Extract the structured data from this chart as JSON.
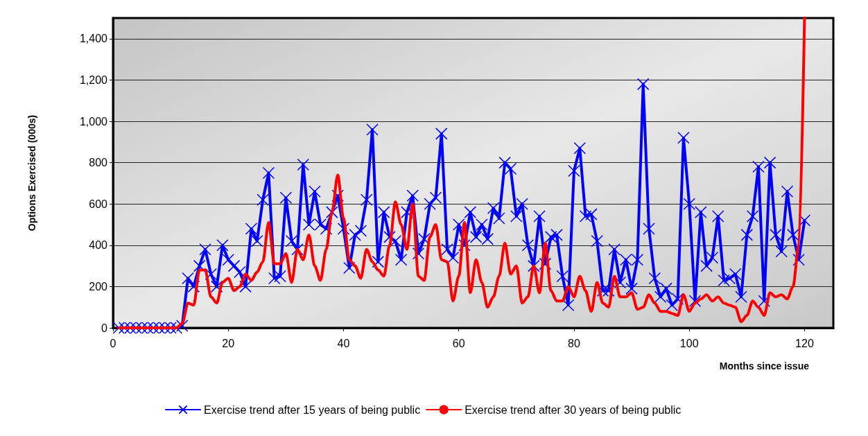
{
  "chart_data": {
    "type": "line",
    "xlabel": "Months since issue",
    "ylabel": "Options Exercised (000s)",
    "x": [
      1,
      2,
      3,
      4,
      5,
      6,
      7,
      8,
      9,
      10,
      11,
      12,
      13,
      14,
      15,
      16,
      17,
      18,
      19,
      20,
      21,
      22,
      23,
      24,
      25,
      26,
      27,
      28,
      29,
      30,
      31,
      32,
      33,
      34,
      35,
      36,
      37,
      38,
      39,
      40,
      41,
      42,
      43,
      44,
      45,
      46,
      47,
      48,
      49,
      50,
      51,
      52,
      53,
      54,
      55,
      56,
      57,
      58,
      59,
      60,
      61,
      62,
      63,
      64,
      65,
      66,
      67,
      68,
      69,
      70,
      71,
      72,
      73,
      74,
      75,
      76,
      77,
      78,
      79,
      80,
      81,
      82,
      83,
      84,
      85,
      86,
      87,
      88,
      89,
      90,
      91,
      92,
      93,
      94,
      95,
      96,
      97,
      98,
      99,
      100,
      101,
      102,
      103,
      104,
      105,
      106,
      107,
      108,
      109,
      110,
      111,
      112,
      113,
      114,
      115,
      116,
      117,
      118,
      119,
      120
    ],
    "xlim": [
      0,
      125
    ],
    "xticks": [
      0,
      20,
      40,
      60,
      80,
      100,
      120
    ],
    "ylim": [
      0,
      1500
    ],
    "yticks": [
      {
        "value": 0,
        "label": "0"
      },
      {
        "value": 200,
        "label": "200"
      },
      {
        "value": 400,
        "label": "400"
      },
      {
        "value": 600,
        "label": "600"
      },
      {
        "value": 800,
        "label": "800"
      },
      {
        "value": 1000,
        "label": "1,000"
      },
      {
        "value": 1200,
        "label": "1,200"
      },
      {
        "value": 1400,
        "label": "1,400"
      }
    ],
    "grid": "y",
    "legend": "bottom left",
    "series": [
      {
        "name": "Exercise trend after 15 years of being public",
        "color": "#0000ff",
        "marker": "cross",
        "values": [
          0,
          0,
          0,
          0,
          0,
          0,
          0,
          0,
          0,
          0,
          0,
          10,
          240,
          200,
          300,
          380,
          260,
          200,
          400,
          330,
          300,
          270,
          200,
          480,
          420,
          620,
          750,
          240,
          250,
          630,
          420,
          380,
          790,
          500,
          660,
          500,
          480,
          560,
          640,
          480,
          290,
          450,
          470,
          620,
          960,
          320,
          560,
          440,
          420,
          330,
          560,
          640,
          360,
          430,
          600,
          630,
          940,
          380,
          340,
          500,
          400,
          560,
          440,
          500,
          430,
          580,
          530,
          800,
          770,
          540,
          600,
          400,
          300,
          540,
          310,
          440,
          450,
          250,
          110,
          760,
          870,
          540,
          550,
          420,
          180,
          180,
          380,
          220,
          330,
          190,
          330,
          1180,
          480,
          240,
          150,
          190,
          110,
          140,
          920,
          600,
          130,
          560,
          300,
          340,
          540,
          230,
          240,
          260,
          150,
          450,
          540,
          780,
          130,
          800,
          450,
          370,
          660,
          450,
          330,
          520
        ]
      },
      {
        "name": "Exercise trend after 30 years of being public",
        "color": "#ff0000",
        "marker": "none",
        "values": [
          0,
          0,
          0,
          0,
          0,
          0,
          0,
          0,
          0,
          0,
          0,
          20,
          120,
          110,
          280,
          280,
          150,
          120,
          220,
          240,
          180,
          200,
          260,
          230,
          270,
          320,
          510,
          310,
          310,
          360,
          220,
          380,
          330,
          450,
          300,
          230,
          380,
          560,
          740,
          530,
          330,
          300,
          240,
          380,
          320,
          280,
          250,
          400,
          610,
          500,
          380,
          600,
          250,
          230,
          440,
          500,
          330,
          320,
          130,
          250,
          510,
          170,
          330,
          220,
          100,
          150,
          250,
          410,
          260,
          300,
          120,
          150,
          300,
          170,
          410,
          180,
          130,
          130,
          200,
          150,
          250,
          180,
          80,
          220,
          120,
          100,
          250,
          150,
          150,
          170,
          90,
          100,
          160,
          120,
          80,
          80,
          70,
          60,
          160,
          80,
          120,
          140,
          160,
          130,
          150,
          120,
          110,
          100,
          30,
          60,
          130,
          100,
          60,
          170,
          150,
          160,
          140,
          200,
          400,
          1500
        ]
      }
    ]
  }
}
